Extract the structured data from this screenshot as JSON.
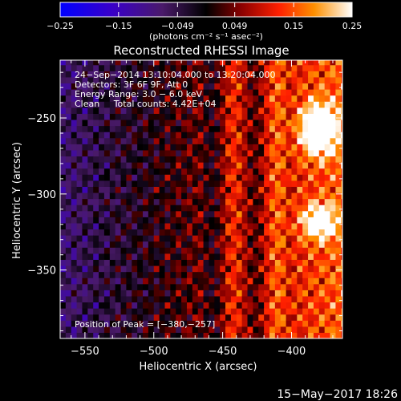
{
  "chart_data": {
    "type": "heatmap",
    "title": "Reconstructed RHESSI Image",
    "xlabel": "Heliocentric X (arcsec)",
    "ylabel": "Heliocentric Y (arcsec)",
    "xlim": [
      -568,
      -363
    ],
    "ylim": [
      -395,
      -212
    ],
    "x_ticks": [
      -550,
      -500,
      -450,
      -400
    ],
    "x_tick_labels": [
      "−550",
      "−500",
      "−450",
      "−400"
    ],
    "y_ticks": [
      -350,
      -300,
      -250
    ],
    "y_tick_labels": [
      "−350",
      "−300",
      "−250"
    ],
    "colorbar": {
      "min": -0.25,
      "max": 0.25,
      "ticks": [
        -0.25,
        -0.15,
        -0.049,
        0.049,
        0.15,
        0.25
      ],
      "tick_labels": [
        "−0.25",
        "−0.15",
        "−0.049",
        "0.049",
        "0.15",
        "0.25"
      ],
      "units": "(photons cm⁻² s⁻¹ asec⁻²)"
    },
    "annotations": [
      "24−Sep−2014 13:10:04.000 to 13:20:04.000",
      "Detectors: 3F 6F 9F, Att 0",
      "Energy Range: 3.0 − 6.0 keV",
      "Clean     Total counts: 4.42E+04"
    ],
    "peak_label": "Position of Peak = [−380,−257]",
    "peak": [
      -380,
      -257
    ],
    "secondary_peak": [
      -380,
      -318
    ]
  },
  "footer": {
    "date": "15−May−2017 18:26"
  }
}
